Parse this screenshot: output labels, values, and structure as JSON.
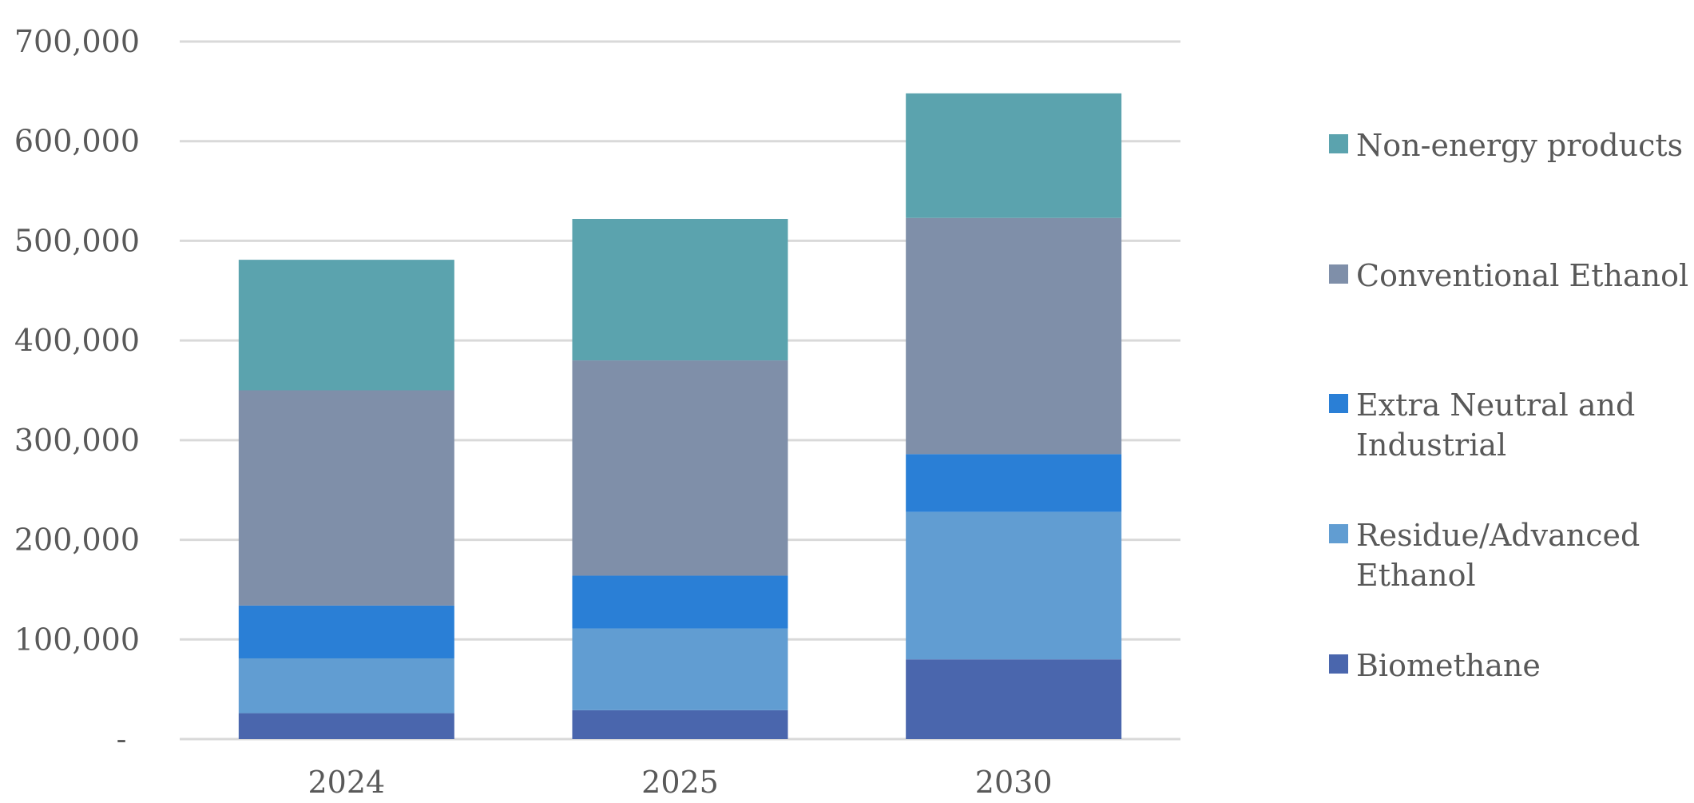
{
  "chart_data": {
    "type": "bar",
    "stacked": true,
    "categories": [
      "2024",
      "2025",
      "2030"
    ],
    "ylim": [
      0,
      700000
    ],
    "y_ticks": [
      {
        "value": 0,
        "label": "-"
      },
      {
        "value": 100000,
        "label": "100,000"
      },
      {
        "value": 200000,
        "label": "200,000"
      },
      {
        "value": 300000,
        "label": "300,000"
      },
      {
        "value": 400000,
        "label": "400,000"
      },
      {
        "value": 500000,
        "label": "500,000"
      },
      {
        "value": 600000,
        "label": "600,000"
      },
      {
        "value": 700000,
        "label": "700,000"
      }
    ],
    "grid": true,
    "legend_position": "right",
    "series": [
      {
        "name": "Biomethane",
        "color": "#4a66ad",
        "values": [
          26000,
          29000,
          80000
        ]
      },
      {
        "name": "Residue/Advanced Ethanol",
        "color": "#619dd2",
        "values": [
          55000,
          82000,
          148000
        ]
      },
      {
        "name": "Extra Neutral and Industrial",
        "color": "#2a7fd6",
        "values": [
          53000,
          53000,
          58000
        ]
      },
      {
        "name": "Conventional Ethanol",
        "color": "#7f8fa9",
        "values": [
          216000,
          216000,
          237000
        ]
      },
      {
        "name": "Non-energy products",
        "color": "#5ba3ae",
        "values": [
          131000,
          142000,
          125000
        ]
      }
    ],
    "legend_order": [
      "Non-energy products",
      "Conventional Ethanol",
      "Extra Neutral and Industrial",
      "Residue/Advanced Ethanol",
      "Biomethane"
    ],
    "legend_lines": {
      "Non-energy products": [
        "Non-energy products"
      ],
      "Conventional Ethanol": [
        "Conventional Ethanol"
      ],
      "Extra Neutral and Industrial": [
        "Extra Neutral and",
        "Industrial"
      ],
      "Residue/Advanced Ethanol": [
        "Residue/Advanced",
        "Ethanol"
      ],
      "Biomethane": [
        "Biomethane"
      ]
    }
  }
}
